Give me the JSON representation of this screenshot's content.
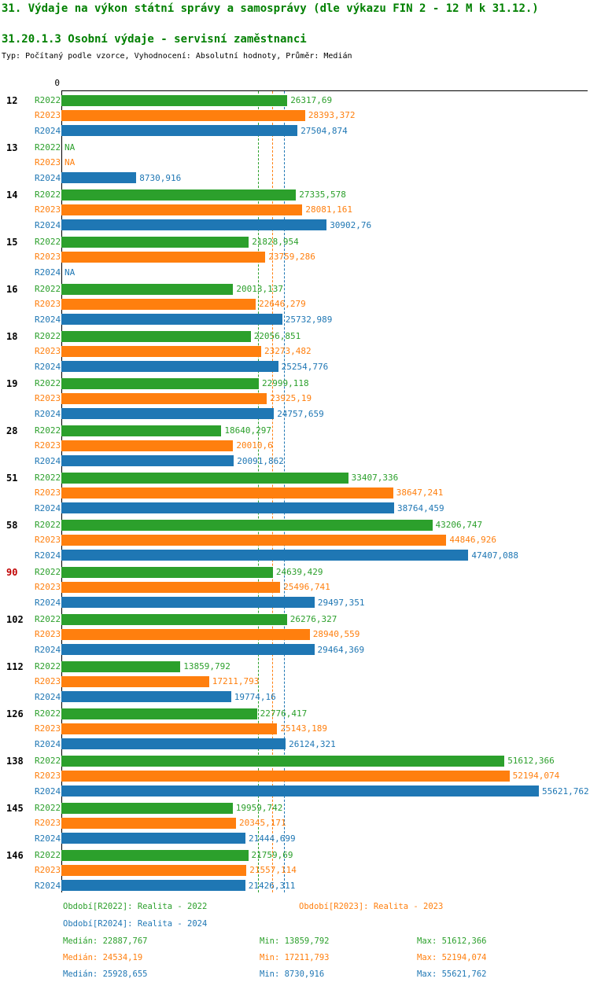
{
  "title": "31. Výdaje na výkon státní správy a samosprávy (dle výkazu FIN 2 - 12 M k 31.12.)",
  "subtitle": "31.20.1.3 Osobní výdaje - servisní zaměstnanci",
  "meta": "Typ: Počítaný podle vzorce, Vyhodnocení: Absolutní hodnoty, Průměr: Medián",
  "axis": {
    "zero_label": "0"
  },
  "colors": {
    "series": [
      "#2ca02c",
      "#ff7f0e",
      "#1f77b4"
    ],
    "title": "#008000",
    "highlight": "#c00000",
    "axis": "#000000"
  },
  "chart_data": {
    "type": "bar",
    "orientation": "horizontal",
    "grid": false,
    "na_label": "NA",
    "value_format": "comma-decimal",
    "xlim": [
      0,
      55621.762
    ],
    "categories": [
      "12",
      "13",
      "14",
      "15",
      "16",
      "18",
      "19",
      "28",
      "51",
      "58",
      "90",
      "102",
      "112",
      "126",
      "138",
      "145",
      "146"
    ],
    "highlighted_category": "90",
    "series": [
      {
        "name": "R2022",
        "values": [
          "26317,69",
          "NA",
          "27335,578",
          "21828,954",
          "20013,137",
          "22056,851",
          "22999,118",
          "18640,297",
          "33407,336",
          "43206,747",
          "24639,429",
          "26276,327",
          "13859,792",
          "22776,417",
          "51612,366",
          "19959,742",
          "21759,69"
        ]
      },
      {
        "name": "R2023",
        "values": [
          "28393,372",
          "NA",
          "28081,161",
          "23759,286",
          "22646,279",
          "23273,482",
          "23925,19",
          "20010,6",
          "38647,241",
          "44846,926",
          "25496,741",
          "28940,559",
          "17211,793",
          "25143,189",
          "52194,074",
          "20345,171",
          "21557,114"
        ]
      },
      {
        "name": "R2024",
        "values": [
          "27504,874",
          "8730,916",
          "30902,76",
          "NA",
          "25732,989",
          "25254,776",
          "24757,659",
          "20091,862",
          "38764,459",
          "47407,088",
          "29497,351",
          "29464,369",
          "19774,16",
          "26124,321",
          "55621,762",
          "21444,699",
          "21426,311"
        ]
      }
    ],
    "medians": [
      22887.767,
      24534.19,
      25928.655
    ]
  },
  "legend": [
    {
      "label": "Období[R2022]: Realita - 2022"
    },
    {
      "label": "Období[R2023]: Realita - 2023"
    },
    {
      "label": "Období[R2024]: Realita - 2024"
    }
  ],
  "stats": [
    {
      "median": "Medián: 22887,767",
      "min": "Min: 13859,792",
      "max": "Max: 51612,366"
    },
    {
      "median": "Medián: 24534,19",
      "min": "Min: 17211,793",
      "max": "Max: 52194,074"
    },
    {
      "median": "Medián: 25928,655",
      "min": "Min: 8730,916",
      "max": "Max: 55621,762"
    }
  ]
}
